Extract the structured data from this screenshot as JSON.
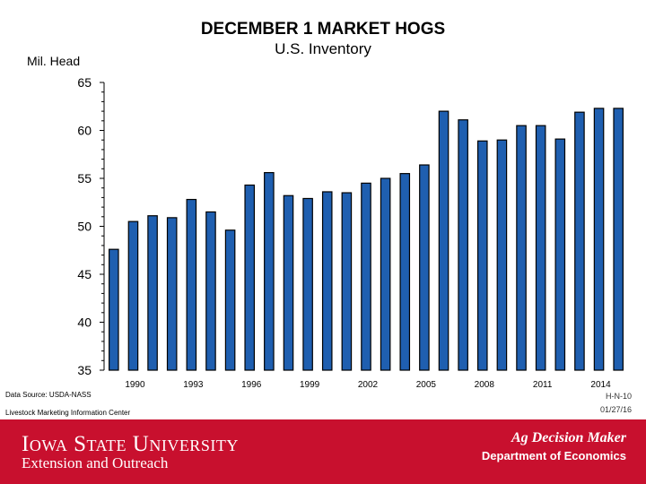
{
  "header": {
    "title": "DECEMBER 1 MARKET HOGS",
    "subtitle": "U.S. Inventory",
    "ylabel": "Mil. Head"
  },
  "colors": {
    "bar": "#1f5fb0",
    "bar_edge": "#000000",
    "footer": "#c8102e"
  },
  "chart_data": {
    "type": "bar",
    "title": "DECEMBER 1 MARKET HOGS",
    "subtitle": "U.S. Inventory",
    "ylabel": "Mil. Head",
    "xlabel": "",
    "ylim": [
      35,
      65
    ],
    "yticks": [
      35,
      40,
      45,
      50,
      55,
      60,
      65
    ],
    "categories": [
      1989,
      1990,
      1991,
      1992,
      1993,
      1994,
      1995,
      1996,
      1997,
      1998,
      1999,
      2000,
      2001,
      2002,
      2003,
      2004,
      2005,
      2006,
      2007,
      2008,
      2009,
      2010,
      2011,
      2012,
      2013,
      2014,
      2015
    ],
    "values": [
      47.6,
      50.5,
      51.1,
      50.9,
      52.8,
      51.5,
      49.6,
      54.3,
      55.6,
      53.2,
      52.9,
      53.6,
      53.5,
      54.5,
      55.0,
      55.5,
      56.4,
      62.0,
      61.1,
      58.9,
      59.0,
      60.5,
      60.5,
      59.1,
      61.9,
      62.3,
      62.3
    ],
    "xtick_labels": [
      "1990",
      "1993",
      "1996",
      "1999",
      "2002",
      "2005",
      "2008",
      "2011",
      "2014"
    ]
  },
  "footer": {
    "source": "Data Source:  USDA-NASS",
    "center": "Livestock Marketing Information Center",
    "code": "H-N-10",
    "date": "01/27/16",
    "university": "Iowa State University",
    "extension": "Extension and Outreach",
    "brand": "Ag Decision Maker",
    "department": "Department of Economics"
  }
}
